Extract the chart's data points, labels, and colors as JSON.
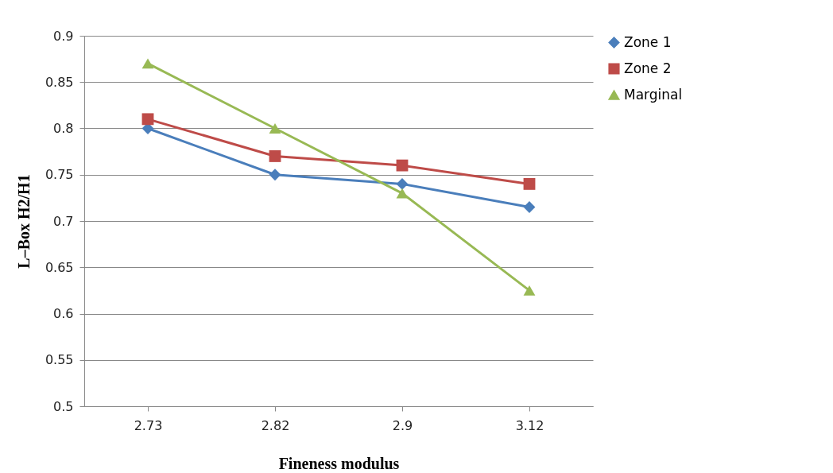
{
  "chart_data": {
    "type": "line",
    "xlabel": "Fineness modulus",
    "ylabel": "L–Box H2/H1",
    "categories": [
      "2.73",
      "2.82",
      "2.9",
      "3.12"
    ],
    "series": [
      {
        "name": "Zone 1",
        "color": "#4a7ebb",
        "marker": "diamond",
        "values": [
          0.8,
          0.75,
          0.74,
          0.715
        ]
      },
      {
        "name": "Zone 2",
        "color": "#be4b48",
        "marker": "square",
        "values": [
          0.81,
          0.77,
          0.76,
          0.74
        ]
      },
      {
        "name": "Marginal",
        "color": "#98b954",
        "marker": "triangle",
        "values": [
          0.87,
          0.8,
          0.73,
          0.625
        ]
      }
    ],
    "ylim": [
      0.5,
      0.9
    ],
    "yticks": [
      0.5,
      0.55,
      0.6,
      0.65,
      0.7,
      0.75,
      0.8,
      0.85,
      0.9
    ],
    "grid": "y",
    "legend": "right",
    "line_style": "solid"
  }
}
